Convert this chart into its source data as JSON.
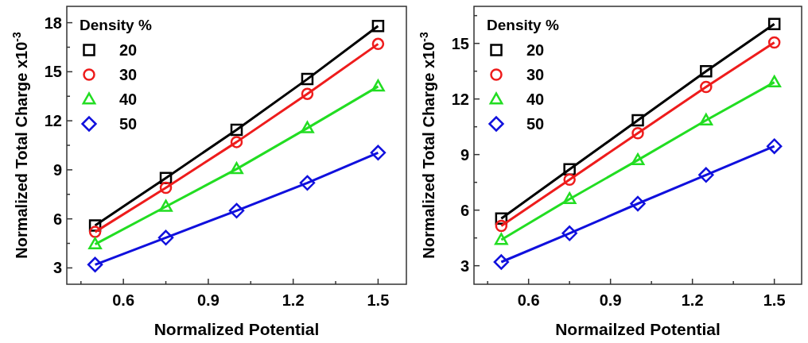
{
  "chart_data": [
    {
      "type": "line",
      "xlabel": "Normalized Potential",
      "ylabel": "Normalized Total Charge x10$^{-3}$",
      "legend_title": "Density %",
      "legend": "top left",
      "grid": false,
      "line_style": "solid",
      "x": [
        0.5,
        0.75,
        1.0,
        1.25,
        1.5
      ],
      "xlim": [
        0.4,
        1.6
      ],
      "xticks": [
        {
          "value": 0.45,
          "label": null
        },
        0.6,
        {
          "value": 0.75,
          "label": null
        },
        0.9,
        {
          "value": 1.05,
          "label": null
        },
        1.2,
        {
          "value": 1.35,
          "label": null
        },
        1.5
      ],
      "ylim": [
        2,
        19
      ],
      "yticks": [
        3,
        {
          "value": 4.5,
          "label": null
        },
        6,
        {
          "value": 7.5,
          "label": null
        },
        9,
        {
          "value": 10.5,
          "label": null
        },
        12,
        {
          "value": 13.5,
          "label": null
        },
        15,
        {
          "value": 16.5,
          "label": null
        },
        18
      ],
      "series": [
        {
          "name": "20",
          "color": "#000000",
          "marker": "square",
          "values": [
            5.6,
            8.5,
            11.45,
            14.55,
            17.8
          ]
        },
        {
          "name": "30",
          "color": "#ee1c1c",
          "marker": "circle",
          "values": [
            5.2,
            7.9,
            10.7,
            13.65,
            16.7
          ]
        },
        {
          "name": "40",
          "color": "#22dd22",
          "marker": "triangle",
          "values": [
            4.45,
            6.75,
            9.05,
            11.55,
            14.1
          ]
        },
        {
          "name": "50",
          "color": "#1010dd",
          "marker": "diamond",
          "values": [
            3.2,
            4.85,
            6.5,
            8.2,
            10.05
          ]
        }
      ]
    },
    {
      "type": "line",
      "xlabel": "Normailzed Potential",
      "ylabel": "Normalized Total Charge x10$^{-3}$",
      "legend_title": "Density %",
      "legend": "top left",
      "grid": false,
      "line_style": "solid",
      "x": [
        0.5,
        0.75,
        1.0,
        1.25,
        1.5
      ],
      "xlim": [
        0.4,
        1.6
      ],
      "xticks": [
        {
          "value": 0.45,
          "label": null
        },
        0.6,
        {
          "value": 0.75,
          "label": null
        },
        0.9,
        {
          "value": 1.05,
          "label": null
        },
        1.2,
        {
          "value": 1.35,
          "label": null
        },
        1.5
      ],
      "ylim": [
        2,
        17
      ],
      "yticks": [
        3,
        {
          "value": 4.5,
          "label": null
        },
        6,
        {
          "value": 7.5,
          "label": null
        },
        9,
        {
          "value": 10.5,
          "label": null
        },
        12,
        {
          "value": 13.5,
          "label": null
        },
        15,
        {
          "value": 16.5,
          "label": null
        }
      ],
      "series": [
        {
          "name": "20",
          "color": "#000000",
          "marker": "square",
          "values": [
            5.55,
            8.2,
            10.85,
            13.5,
            16.05
          ]
        },
        {
          "name": "30",
          "color": "#ee1c1c",
          "marker": "circle",
          "values": [
            5.15,
            7.65,
            10.15,
            12.65,
            15.05
          ]
        },
        {
          "name": "40",
          "color": "#22dd22",
          "marker": "triangle",
          "values": [
            4.4,
            6.6,
            8.7,
            10.85,
            12.9
          ]
        },
        {
          "name": "50",
          "color": "#1010dd",
          "marker": "diamond",
          "values": [
            3.2,
            4.75,
            6.35,
            7.9,
            9.45
          ]
        }
      ]
    }
  ]
}
